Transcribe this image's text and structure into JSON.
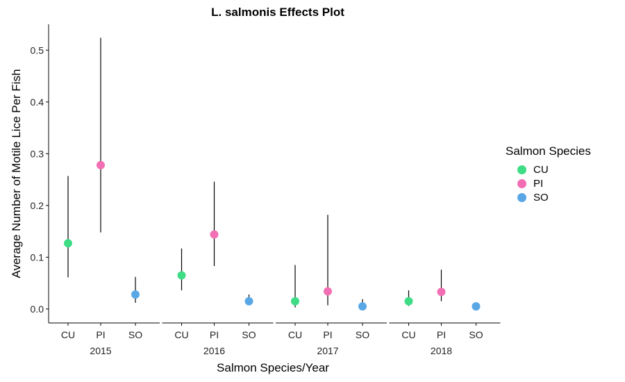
{
  "chart_data": {
    "type": "scatter",
    "title": "L. salmonis Effects Plot",
    "xlabel": "Salmon Species/Year",
    "ylabel": "Average Number of Motile Lice Per Fish",
    "ylim": [
      -0.027,
      0.55
    ],
    "yticks": [
      "0.0",
      "0.1",
      "0.2",
      "0.3",
      "0.4",
      "0.5"
    ],
    "grid": false,
    "legend": {
      "title": "Salmon Species",
      "position": "right",
      "entries": [
        "CU",
        "PI",
        "SO"
      ]
    },
    "colors": {
      "CU": "#3fdc86",
      "PI": "#f26fb3",
      "SO": "#5aa7e6"
    },
    "facets": [
      {
        "label": "2015",
        "categories": [
          "CU",
          "PI",
          "SO"
        ],
        "points": [
          {
            "species": "CU",
            "y": 0.127,
            "lower": 0.061,
            "upper": 0.257
          },
          {
            "species": "PI",
            "y": 0.278,
            "lower": 0.148,
            "upper": 0.524
          },
          {
            "species": "SO",
            "y": 0.028,
            "lower": 0.012,
            "upper": 0.062
          }
        ]
      },
      {
        "label": "2016",
        "categories": [
          "CU",
          "PI",
          "SO"
        ],
        "points": [
          {
            "species": "CU",
            "y": 0.065,
            "lower": 0.036,
            "upper": 0.117
          },
          {
            "species": "PI",
            "y": 0.144,
            "lower": 0.083,
            "upper": 0.246
          },
          {
            "species": "SO",
            "y": 0.015,
            "lower": 0.008,
            "upper": 0.028
          }
        ]
      },
      {
        "label": "2017",
        "categories": [
          "CU",
          "PI",
          "SO"
        ],
        "points": [
          {
            "species": "CU",
            "y": 0.015,
            "lower": 0.003,
            "upper": 0.085
          },
          {
            "species": "PI",
            "y": 0.034,
            "lower": 0.007,
            "upper": 0.182
          },
          {
            "species": "SO",
            "y": 0.005,
            "lower": 0.001,
            "upper": 0.019
          }
        ]
      },
      {
        "label": "2018",
        "categories": [
          "CU",
          "PI",
          "SO"
        ],
        "points": [
          {
            "species": "CU",
            "y": 0.015,
            "lower": 0.006,
            "upper": 0.036
          },
          {
            "species": "PI",
            "y": 0.033,
            "lower": 0.015,
            "upper": 0.076
          },
          {
            "species": "SO",
            "y": 0.005,
            "lower": 0.002,
            "upper": 0.01
          }
        ]
      }
    ]
  }
}
